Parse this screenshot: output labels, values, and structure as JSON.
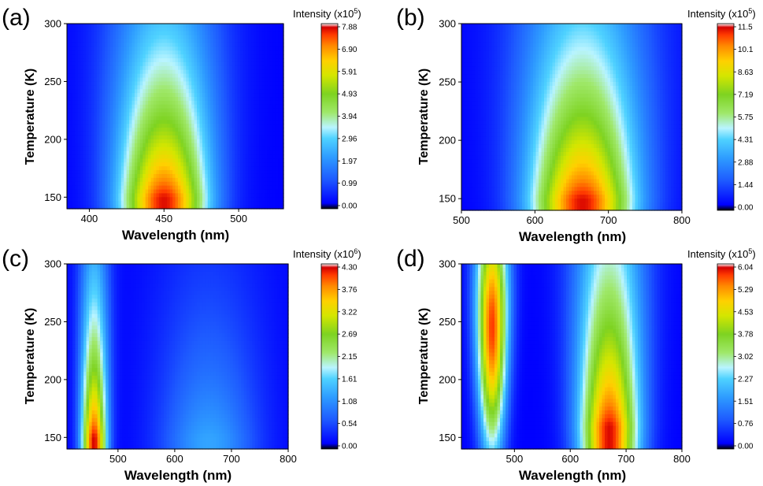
{
  "colorscale": [
    "#000000",
    "#0000ff",
    "#1e5bff",
    "#2e9cff",
    "#4fd2ff",
    "#b9f4ff",
    "#9fe86a",
    "#7ed321",
    "#d4e600",
    "#ffd000",
    "#ff8a00",
    "#ff3b00",
    "#d40000",
    "#ffffff"
  ],
  "chart_data": [
    {
      "panel_label": "(a)",
      "type": "heatmap",
      "xlabel": "Wavelength (nm)",
      "ylabel": "Temperature (K)",
      "xlim": [
        385,
        530
      ],
      "ylim": [
        140,
        300
      ],
      "x_ticks": [
        "400",
        "450",
        "500"
      ],
      "y_ticks": [
        "150",
        "200",
        "250",
        "300"
      ],
      "colorbar": {
        "title_base": "Intensity (x10",
        "title_exp": "5",
        "title_end": ")",
        "ticks": [
          "7.88",
          "6.90",
          "5.91",
          "4.93",
          "3.94",
          "2.96",
          "1.97",
          "0.99",
          "0.00"
        ],
        "max": 7.88
      },
      "peaks": [
        {
          "center_nm": 450,
          "width_nm": 30,
          "amplitude": 7.8,
          "t_decay": 0.007,
          "t_ref": 150
        }
      ]
    },
    {
      "panel_label": "(b)",
      "type": "heatmap",
      "xlabel": "Wavelength (nm)",
      "ylabel": "Temperature (K)",
      "xlim": [
        500,
        800
      ],
      "ylim": [
        140,
        300
      ],
      "x_ticks": [
        "500",
        "600",
        "700",
        "800"
      ],
      "y_ticks": [
        "150",
        "200",
        "250",
        "300"
      ],
      "colorbar": {
        "title_base": "Intensity (x10",
        "title_exp": "5",
        "title_end": ")",
        "ticks": [
          "11.5",
          "10.1",
          "8.63",
          "7.19",
          "5.75",
          "4.31",
          "2.88",
          "1.44",
          "0.00"
        ],
        "max": 11.5
      },
      "peaks": [
        {
          "center_nm": 665,
          "width_nm": 72,
          "amplitude": 11.4,
          "t_decay": 0.0065,
          "t_ref": 150
        }
      ]
    },
    {
      "panel_label": "(c)",
      "type": "heatmap",
      "xlabel": "Wavelength (nm)",
      "ylabel": "Temperature (K)",
      "xlim": [
        410,
        800
      ],
      "ylim": [
        140,
        300
      ],
      "x_ticks": [
        "500",
        "600",
        "700",
        "800"
      ],
      "y_ticks": [
        "150",
        "200",
        "250",
        "300"
      ],
      "colorbar": {
        "title_base": "Intensity (x10",
        "title_exp": "6",
        "title_end": ")",
        "ticks": [
          "4.30",
          "3.76",
          "3.22",
          "2.69",
          "2.15",
          "1.61",
          "1.08",
          "0.54",
          "0.00"
        ],
        "max": 4.3
      },
      "peaks": [
        {
          "center_nm": 458,
          "width_nm": 22,
          "amplitude": 4.3,
          "t_decay": 0.008,
          "t_ref": 150
        },
        {
          "center_nm": 660,
          "width_nm": 85,
          "amplitude": 1.2,
          "t_decay": 0.008,
          "t_ref": 150
        }
      ]
    },
    {
      "panel_label": "(d)",
      "type": "heatmap",
      "xlabel": "Wavelength (nm)",
      "ylabel": "Temperature (K)",
      "xlim": [
        405,
        800
      ],
      "ylim": [
        140,
        300
      ],
      "x_ticks": [
        "500",
        "600",
        "700",
        "800"
      ],
      "y_ticks": [
        "150",
        "200",
        "250",
        "300"
      ],
      "colorbar": {
        "title_base": "Intensity (x10",
        "title_exp": "5",
        "title_end": ")",
        "ticks": [
          "6.04",
          "5.29",
          "4.53",
          "3.78",
          "3.02",
          "2.27",
          "1.51",
          "0.76",
          "0.00"
        ],
        "max": 6.04
      },
      "peaks": [
        {
          "center_nm": 460,
          "width_nm": 24,
          "amplitude": 5.8,
          "t_peak": 245,
          "t_sigma": 110
        },
        {
          "center_nm": 670,
          "width_nm": 52,
          "amplitude": 6.0,
          "t_decay": 0.0055,
          "t_ref": 160
        }
      ]
    }
  ]
}
